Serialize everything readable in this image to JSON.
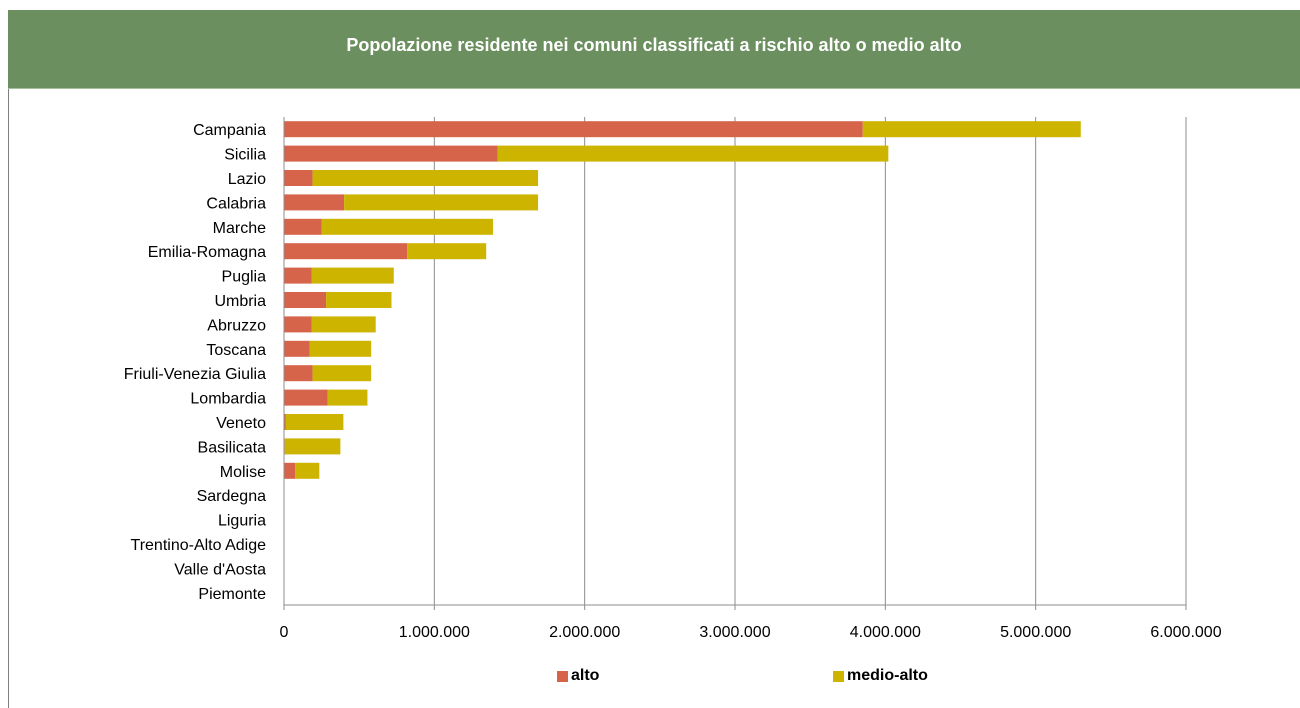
{
  "header": {
    "title": "Popolazione residente nei comuni classificati a rischio alto o medio alto"
  },
  "colors": {
    "header_bg": "#6b8f5e",
    "alto": "#d6644a",
    "medio_alto": "#ccb400",
    "gridline": "#8c8c8c"
  },
  "legend": {
    "alto": "alto",
    "medio_alto": "medio-alto"
  },
  "chart_data": {
    "type": "bar",
    "orientation": "horizontal",
    "stacked": true,
    "title": "Popolazione residente nei comuni classificati a rischio alto o medio alto",
    "xlim": [
      0,
      6000000
    ],
    "x_ticks": [
      0,
      1000000,
      2000000,
      3000000,
      4000000,
      5000000,
      6000000
    ],
    "x_tick_labels": [
      "0",
      "1.000.000",
      "2.000.000",
      "3.000.000",
      "4.000.000",
      "5.000.000",
      "6.000.000"
    ],
    "grid": "vertical",
    "legend_position": "bottom",
    "categories": [
      "Campania",
      "Sicilia",
      "Lazio",
      "Calabria",
      "Marche",
      "Emilia-Romagna",
      "Puglia",
      "Umbria",
      "Abruzzo",
      "Toscana",
      "Friuli-Venezia Giulia",
      "Lombardia",
      "Veneto",
      "Basilicata",
      "Molise",
      "Sardegna",
      "Liguria",
      "Trentino-Alto Adige",
      "Valle d'Aosta",
      "Piemonte"
    ],
    "series": [
      {
        "name": "alto",
        "values": [
          3850000,
          1420000,
          190000,
          400000,
          250000,
          820000,
          185000,
          280000,
          185000,
          170000,
          190000,
          290000,
          10000,
          5000,
          75000,
          0,
          0,
          0,
          0,
          0
        ]
      },
      {
        "name": "medio-alto",
        "values": [
          1450000,
          2600000,
          1500000,
          1290000,
          1140000,
          525000,
          545000,
          435000,
          425000,
          410000,
          390000,
          265000,
          385000,
          370000,
          160000,
          0,
          0,
          0,
          0,
          0
        ]
      }
    ]
  }
}
